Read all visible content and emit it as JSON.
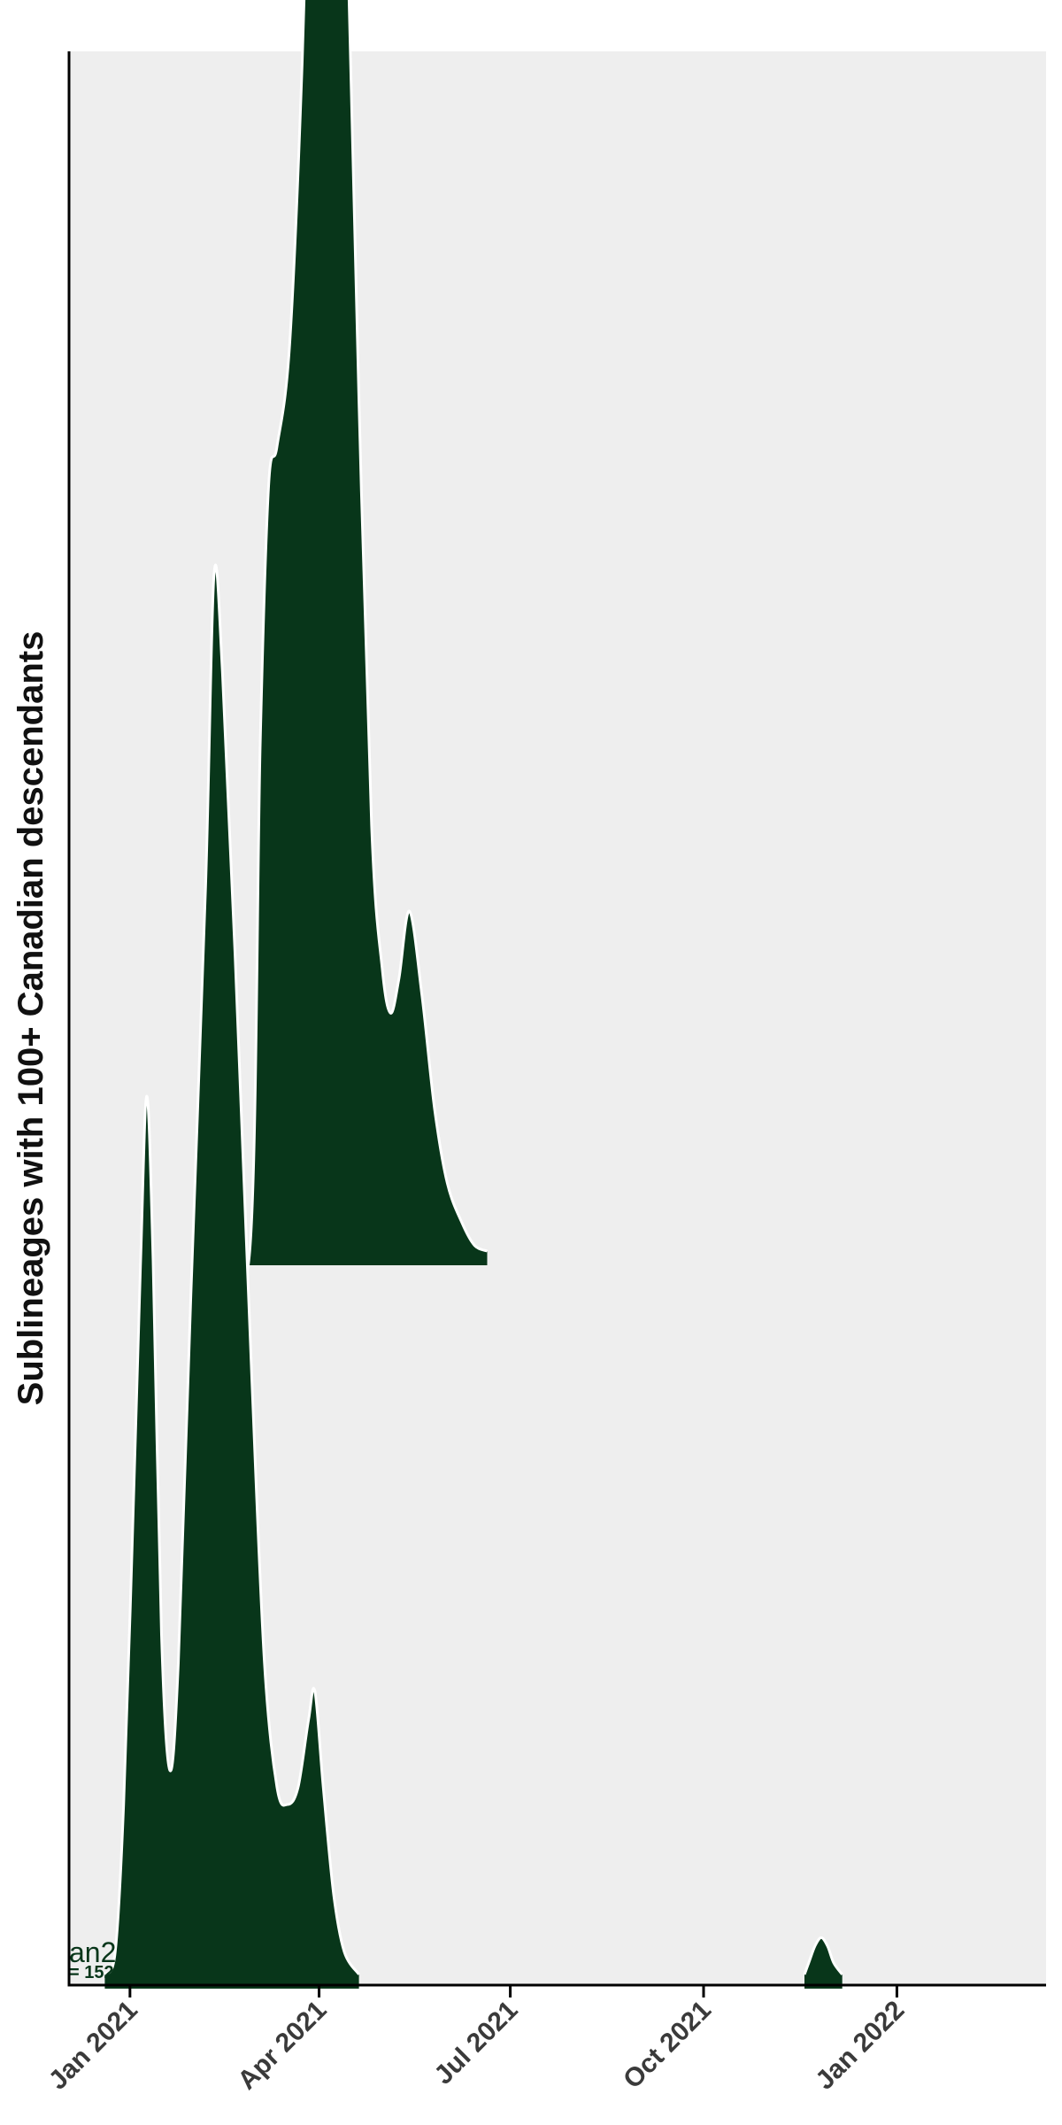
{
  "chart_data": {
    "type": "area",
    "ylabel": "Sublineages with 100+ Canadian descendants",
    "x_axis": {
      "ticks": [
        "2021-01-01",
        "2021-04-01",
        "2021-07-01",
        "2021-10-01",
        "2022-01-01"
      ],
      "tick_labels": [
        "Jan 2021",
        "Apr 2021",
        "Jul 2021",
        "Oct 2021",
        "Jan 2022"
      ],
      "range": [
        "2020-12-03",
        "2022-03-13"
      ]
    },
    "fill_color": "#08361a",
    "outline_color": "#ffffff",
    "panel_color": "#eeeeee",
    "ridges": [
      {
        "label": "an2",
        "count_label": "= 152",
        "baseline_rank": 0,
        "start": "2020-12-20",
        "end": "2021-04-20",
        "density": [
          [
            "2020-12-20",
            0.0
          ],
          [
            "2020-12-25",
            0.04
          ],
          [
            "2020-12-29",
            0.3
          ],
          [
            "2021-01-02",
            0.75
          ],
          [
            "2021-01-06",
            1.25
          ],
          [
            "2021-01-09",
            1.55
          ],
          [
            "2021-01-12",
            1.26
          ],
          [
            "2021-01-16",
            0.6
          ],
          [
            "2021-01-20",
            0.36
          ],
          [
            "2021-01-24",
            0.55
          ],
          [
            "2021-01-30",
            1.2
          ],
          [
            "2021-02-06",
            1.92
          ],
          [
            "2021-02-10",
            2.47
          ],
          [
            "2021-02-14",
            2.3
          ],
          [
            "2021-02-20",
            1.8
          ],
          [
            "2021-02-28",
            1.05
          ],
          [
            "2021-03-06",
            0.55
          ],
          [
            "2021-03-12",
            0.33
          ],
          [
            "2021-03-17",
            0.3
          ],
          [
            "2021-03-22",
            0.33
          ],
          [
            "2021-03-27",
            0.45
          ],
          [
            "2021-03-30",
            0.5
          ],
          [
            "2021-04-03",
            0.33
          ],
          [
            "2021-04-08",
            0.14
          ],
          [
            "2021-04-13",
            0.04
          ],
          [
            "2021-04-20",
            0.0
          ]
        ]
      },
      {
        "label": "",
        "count_label": "",
        "baseline_rank": 1,
        "start": "2021-02-08",
        "end": "2021-06-20",
        "density": [
          [
            "2021-02-08",
            0.0
          ],
          [
            "2021-02-10",
            0.02
          ],
          [
            "2021-02-12",
            0.0
          ],
          [
            "2021-02-27",
            0.0
          ],
          [
            "2021-03-04",
            0.9
          ],
          [
            "2021-03-08",
            1.35
          ],
          [
            "2021-03-12",
            1.42
          ],
          [
            "2021-03-18",
            1.6
          ],
          [
            "2021-03-24",
            2.1
          ],
          [
            "2021-03-30",
            2.85
          ],
          [
            "2021-04-04",
            3.3
          ],
          [
            "2021-04-08",
            3.15
          ],
          [
            "2021-04-14",
            2.4
          ],
          [
            "2021-04-20",
            1.5
          ],
          [
            "2021-04-26",
            0.75
          ],
          [
            "2021-05-01",
            0.5
          ],
          [
            "2021-05-05",
            0.42
          ],
          [
            "2021-05-09",
            0.48
          ],
          [
            "2021-05-14",
            0.6
          ],
          [
            "2021-05-20",
            0.45
          ],
          [
            "2021-05-26",
            0.25
          ],
          [
            "2021-06-01",
            0.12
          ],
          [
            "2021-06-08",
            0.05
          ],
          [
            "2021-06-14",
            0.01
          ],
          [
            "2021-06-20",
            0.0
          ]
        ]
      },
      {
        "label": "",
        "count_label": "",
        "baseline_rank": 0,
        "start": "2021-11-18",
        "end": "2021-12-06",
        "density": [
          [
            "2021-11-18",
            0.0
          ],
          [
            "2021-11-20",
            0.02
          ],
          [
            "2021-11-23",
            0.05
          ],
          [
            "2021-11-26",
            0.065
          ],
          [
            "2021-11-29",
            0.05
          ],
          [
            "2021-12-02",
            0.02
          ],
          [
            "2021-12-06",
            0.0
          ]
        ]
      }
    ],
    "grid": false
  }
}
